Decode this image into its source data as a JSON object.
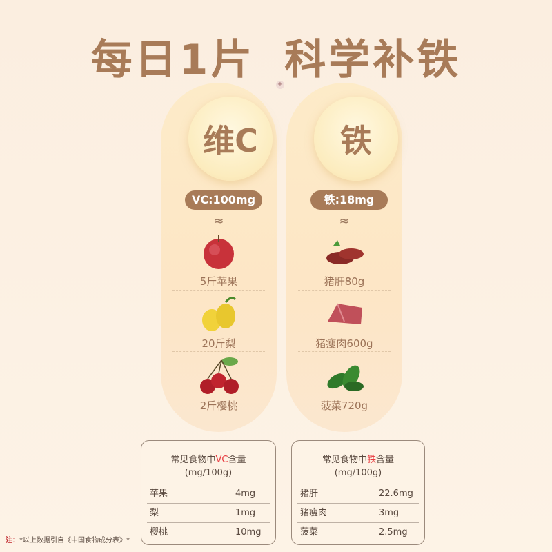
{
  "title": "每日1片  科学补铁",
  "plus_icon": "+",
  "columns": [
    {
      "badge": "维C",
      "pill": "VC:100mg",
      "approx": "≈",
      "items": [
        {
          "label": "5斤苹果",
          "icon": "apple-icon"
        },
        {
          "label": "20斤梨",
          "icon": "pear-icon"
        },
        {
          "label": "2斤樱桃",
          "icon": "cherry-icon"
        }
      ]
    },
    {
      "badge": "铁",
      "pill": "铁:18mg",
      "approx": "≈",
      "items": [
        {
          "label": "猪肝80g",
          "icon": "pork-liver-icon"
        },
        {
          "label": "猪瘦肉600g",
          "icon": "lean-pork-icon"
        },
        {
          "label": "菠菜720g",
          "icon": "spinach-icon"
        }
      ]
    }
  ],
  "tables": [
    {
      "title_pre": "常见食物中",
      "title_hl": "VC",
      "title_post": "含量",
      "unit": "(mg/100g)",
      "rows": [
        {
          "name": "苹果",
          "value": "4mg"
        },
        {
          "name": "梨",
          "value": "1mg"
        },
        {
          "name": "樱桃",
          "value": "10mg"
        }
      ]
    },
    {
      "title_pre": "常见食物中",
      "title_hl": "铁",
      "title_post": "含量",
      "unit": "(mg/100g)",
      "rows": [
        {
          "name": "猪肝",
          "value": "22.6mg"
        },
        {
          "name": "猪瘦肉",
          "value": "3mg"
        },
        {
          "name": "菠菜",
          "value": "2.5mg"
        }
      ]
    }
  ],
  "note": {
    "key": "注：",
    "text": "*以上数据引自《中国食物成分表》*"
  },
  "colors": {
    "brand": "#a87b58",
    "highlight": "#e8383d"
  }
}
